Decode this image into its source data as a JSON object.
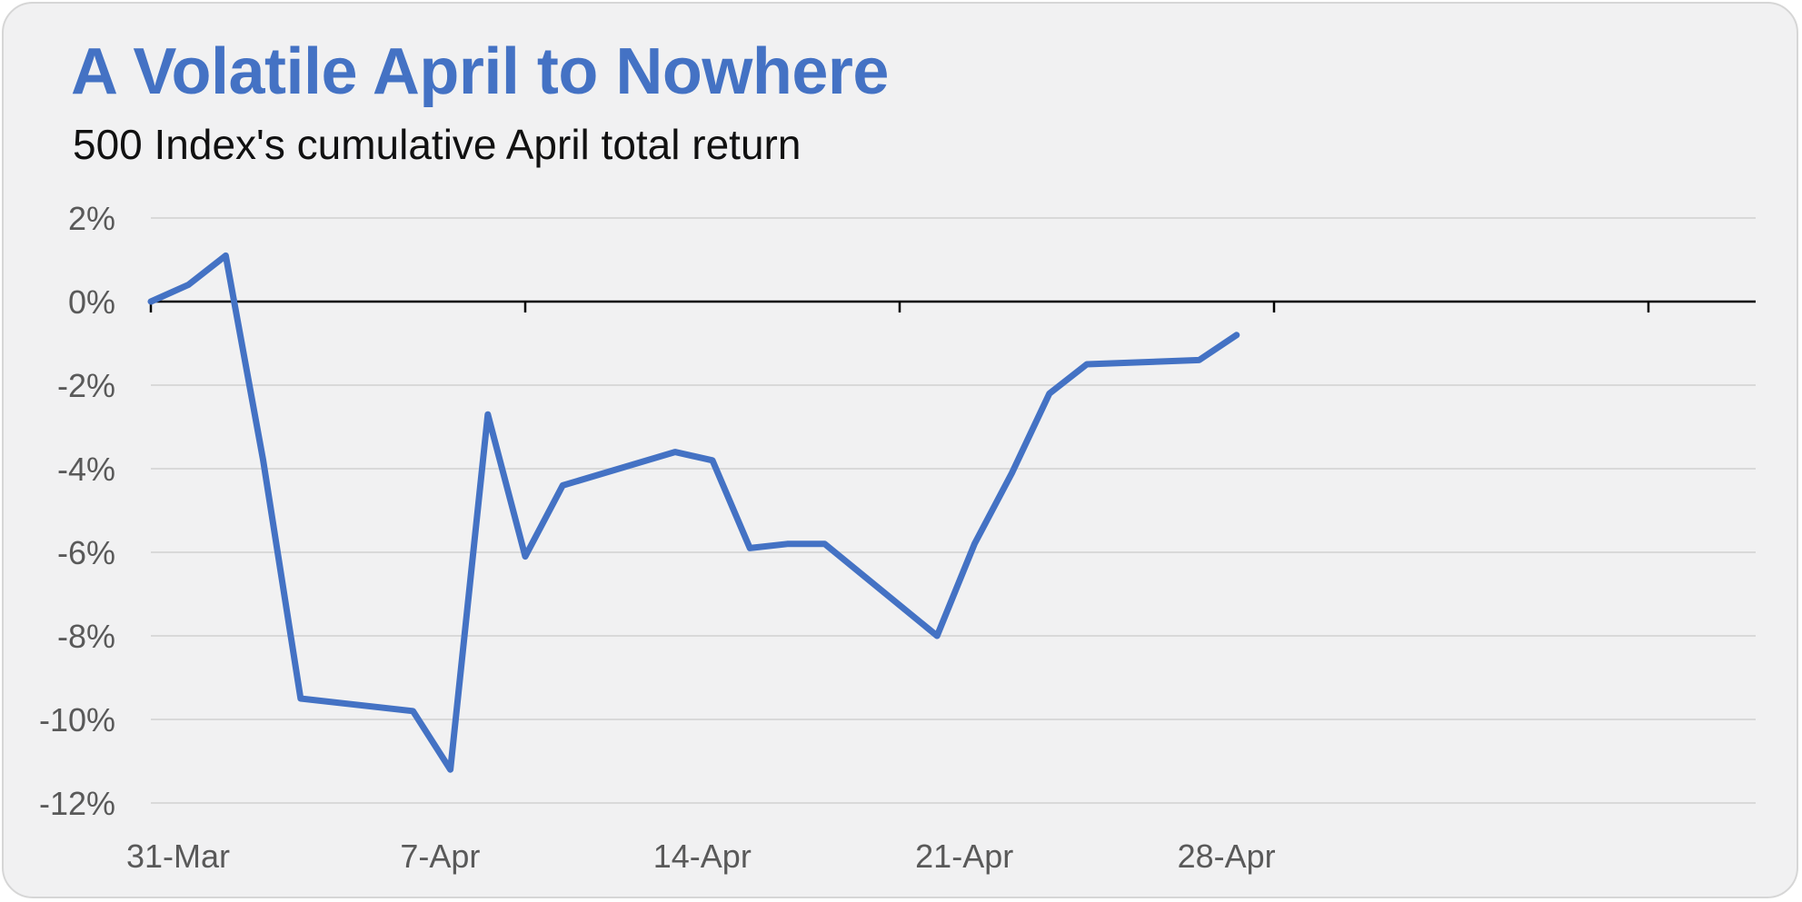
{
  "chart_data": {
    "type": "line",
    "title": "A Volatile April to Nowhere",
    "subtitle": "500 Index's cumulative April total return",
    "xlabel": "",
    "ylabel": "",
    "x_tick_labels": [
      "31-Mar",
      "7-Apr",
      "14-Apr",
      "21-Apr",
      "28-Apr"
    ],
    "x_tick_days": [
      0,
      7,
      14,
      21,
      28
    ],
    "y_tick_labels": [
      "2%",
      "0%",
      "-2%",
      "-4%",
      "-6%",
      "-8%",
      "-10%",
      "-12%"
    ],
    "y_tick_values": [
      2,
      0,
      -2,
      -4,
      -6,
      -8,
      -10,
      -12
    ],
    "xlim": [
      "30-Mar",
      "30-Apr"
    ],
    "ylim": [
      -12,
      2
    ],
    "grid": true,
    "colors": {
      "line": "#4472c4",
      "grid": "#d9d9d9",
      "axis": "#000000",
      "title": "#4472c4",
      "tick_label": "#595959",
      "background": "#f1f1f2"
    },
    "series": [
      {
        "x": [
          "31-Mar",
          "1-Apr",
          "2-Apr",
          "3-Apr",
          "4-Apr",
          "7-Apr",
          "8-Apr",
          "9-Apr",
          "10-Apr",
          "11-Apr",
          "14-Apr",
          "15-Apr",
          "16-Apr",
          "17-Apr",
          "18-Apr",
          "21-Apr",
          "22-Apr",
          "23-Apr",
          "24-Apr",
          "25-Apr",
          "28-Apr",
          "29-Apr"
        ],
        "values": [
          0.0,
          0.4,
          1.1,
          -3.8,
          -9.5,
          -9.8,
          -11.2,
          -2.7,
          -6.1,
          -4.4,
          -3.6,
          -3.8,
          -5.9,
          -5.8,
          -5.8,
          -8.0,
          -5.8,
          -4.1,
          -2.2,
          -1.5,
          -1.4,
          -0.8
        ]
      }
    ]
  }
}
